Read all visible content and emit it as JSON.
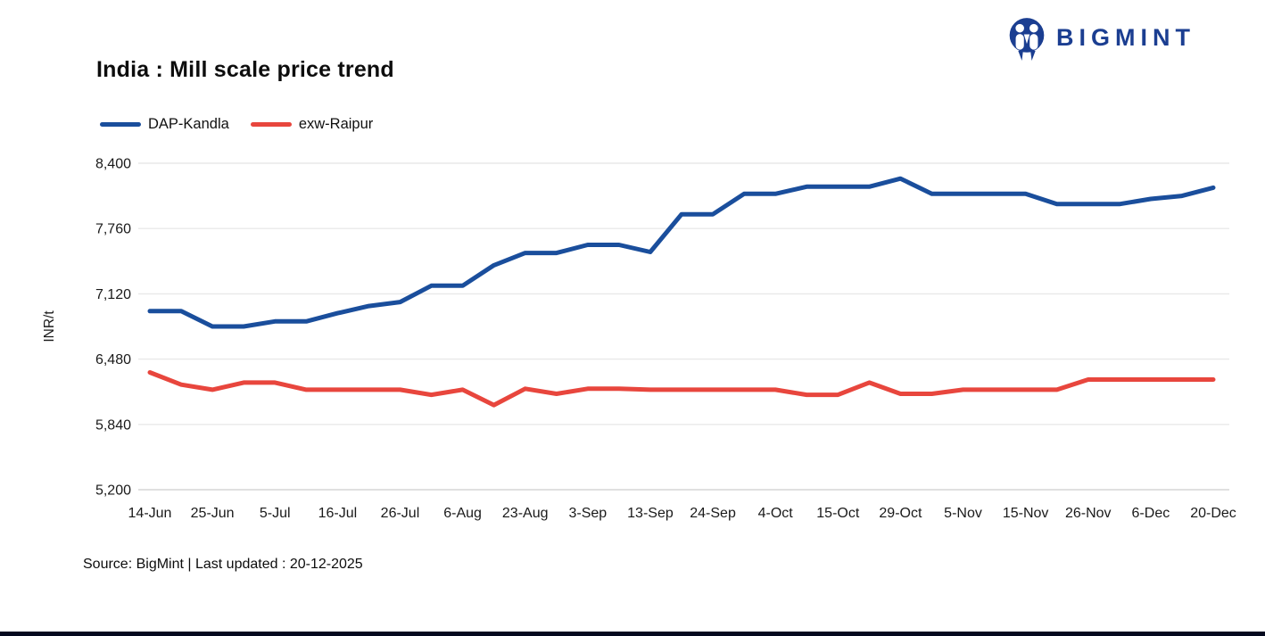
{
  "brand": {
    "name": "BIGMINT",
    "color": "#1b3e91"
  },
  "title": "India : Mill scale price trend",
  "legend": [
    {
      "label": "DAP-Kandla",
      "color": "#1a4e9c"
    },
    {
      "label": "exw-Raipur",
      "color": "#e8463d"
    }
  ],
  "ylabel": "INR/t",
  "source_note": "Source: BigMint | Last updated : 20-12-2025",
  "chart_data": {
    "type": "line",
    "title": "India : Mill scale price trend",
    "ylabel": "INR/t",
    "ylim": [
      5200,
      8400
    ],
    "yticks": [
      5200,
      5840,
      6480,
      7120,
      7760,
      8400
    ],
    "grid": "horizontal",
    "legend_position": "top-left",
    "n_points": 35,
    "x_tick_labels": [
      "14-Jun",
      "25-Jun",
      "5-Jul",
      "16-Jul",
      "26-Jul",
      "6-Aug",
      "23-Aug",
      "3-Sep",
      "13-Sep",
      "24-Sep",
      "4-Oct",
      "15-Oct",
      "29-Oct",
      "5-Nov",
      "15-Nov",
      "26-Nov",
      "6-Dec",
      "20-Dec"
    ],
    "x_tick_indices": [
      0,
      2,
      4,
      6,
      8,
      10,
      12,
      14,
      16,
      18,
      20,
      22,
      24,
      26,
      28,
      30,
      32,
      34
    ],
    "series": [
      {
        "name": "DAP-Kandla",
        "color": "#1a4e9c",
        "values": [
          6950,
          6950,
          6800,
          6800,
          6850,
          6850,
          6930,
          7000,
          7040,
          7200,
          7200,
          7400,
          7520,
          7520,
          7600,
          7600,
          7530,
          7900,
          7900,
          8100,
          8100,
          8170,
          8170,
          8170,
          8250,
          8100,
          8100,
          8100,
          8100,
          8000,
          8000,
          8000,
          8050,
          8080,
          8160
        ]
      },
      {
        "name": "exw-Raipur",
        "color": "#e8463d",
        "values": [
          6350,
          6230,
          6180,
          6250,
          6250,
          6180,
          6180,
          6180,
          6180,
          6130,
          6180,
          6030,
          6190,
          6140,
          6190,
          6190,
          6180,
          6180,
          6180,
          6180,
          6180,
          6130,
          6130,
          6250,
          6140,
          6140,
          6180,
          6180,
          6180,
          6180,
          6280,
          6280,
          6280,
          6280,
          6280
        ]
      }
    ]
  }
}
